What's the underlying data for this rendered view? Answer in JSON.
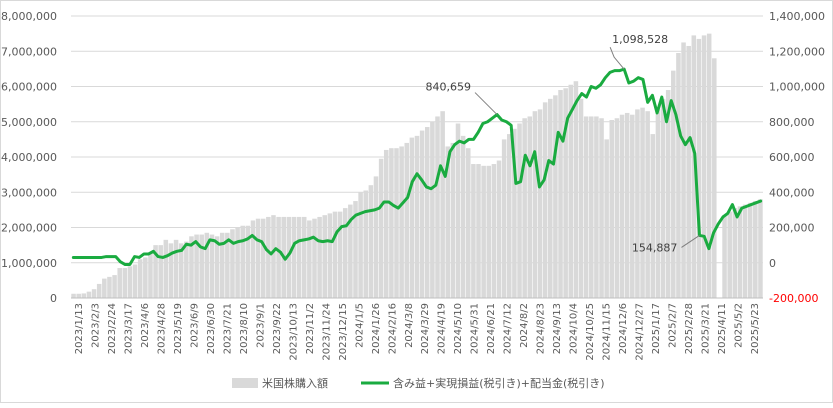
{
  "chart_data": {
    "type": "bar",
    "combo": "bar+line, dual y-axis",
    "x_tick_labels": [
      "2023/1/13",
      "2023/2/3",
      "2023/2/24",
      "2023/3/17",
      "2023/4/6",
      "2023/4/28",
      "2023/5/19",
      "2023/6/9",
      "2023/6/30",
      "2023/7/21",
      "2023/8/10",
      "2023/9/1",
      "2023/9/22",
      "2023/10/13",
      "2023/11/2",
      "2023/11/24",
      "2023/12/15",
      "2024/1/5",
      "2024/1/26",
      "2024/2/16",
      "2024/3/8",
      "2024/3/29",
      "2024/4/19",
      "2024/5/10",
      "2024/5/31",
      "2024/6/21",
      "2024/7/12",
      "2024/8/2",
      "2024/8/23",
      "2024/9/13",
      "2024/10/4",
      "2024/10/25",
      "2024/11/15",
      "2024/12/6",
      "2024/12/27",
      "2025/1/17",
      "2025/2/7",
      "2025/2/28",
      "2025/3/21",
      "2025/4/11",
      "2025/5/2",
      "2025/5/23"
    ],
    "y_left": {
      "ticks": [
        "0",
        "1,000,000",
        "2,000,000",
        "3,000,000",
        "4,000,000",
        "5,000,000",
        "6,000,000",
        "7,000,000",
        "8,000,000"
      ],
      "range": [
        0,
        8000000
      ]
    },
    "y_right": {
      "ticks": [
        "-200,000",
        "0",
        "200,000",
        "400,000",
        "600,000",
        "800,000",
        "1,000,000",
        "1,200,000",
        "1,400,000"
      ],
      "range": [
        -200000,
        1400000
      ],
      "negative_color": "#ff0000"
    },
    "grid": true,
    "legend_position": "bottom",
    "series": [
      {
        "name": "米国株購入額",
        "kind": "bar",
        "axis": "left",
        "color": "#d9d9d9",
        "values": [
          120000,
          120000,
          130000,
          180000,
          250000,
          400000,
          550000,
          600000,
          650000,
          850000,
          850000,
          900000,
          950000,
          1100000,
          1150000,
          1300000,
          1500000,
          1500000,
          1650000,
          1550000,
          1650000,
          1550000,
          1600000,
          1750000,
          1800000,
          1800000,
          1850000,
          1800000,
          1750000,
          1850000,
          1850000,
          1950000,
          2000000,
          2050000,
          2050000,
          2200000,
          2250000,
          2250000,
          2300000,
          2350000,
          2300000,
          2300000,
          2300000,
          2300000,
          2300000,
          2300000,
          2200000,
          2250000,
          2300000,
          2350000,
          2400000,
          2450000,
          2450000,
          2550000,
          2650000,
          2750000,
          3000000,
          3050000,
          3200000,
          3450000,
          3950000,
          4200000,
          4250000,
          4250000,
          4300000,
          4400000,
          4550000,
          4600000,
          4750000,
          4850000,
          5000000,
          5150000,
          5300000,
          4300000,
          4400000,
          4950000,
          4600000,
          4250000,
          3800000,
          3800000,
          3750000,
          3750000,
          3800000,
          3900000,
          4500000,
          4650000,
          4800000,
          4950000,
          5100000,
          5150000,
          5300000,
          5350000,
          5550000,
          5650000,
          5750000,
          5900000,
          5950000,
          6050000,
          6150000,
          5650000,
          5150000,
          5150000,
          5150000,
          5100000,
          4500000,
          5050000,
          5100000,
          5200000,
          5250000,
          5200000,
          5350000,
          5400000,
          5300000,
          4650000,
          5350000,
          5650000,
          5900000,
          6450000,
          6950000,
          7250000,
          7150000,
          7450000,
          7350000,
          7450000,
          7500000,
          6800000,
          0,
          2350000,
          2450000,
          2550000,
          2600000,
          2650000,
          2700000,
          2750000,
          2800000
        ]
      },
      {
        "name": "含み益+実現損益(税引き)+配当金(税引き)",
        "kind": "line",
        "axis": "right",
        "color": "#1aab40",
        "values": [
          30000,
          30000,
          30000,
          30000,
          30000,
          30000,
          30000,
          35000,
          35000,
          35000,
          5000,
          -10000,
          -10000,
          35000,
          30000,
          50000,
          50000,
          65000,
          35000,
          30000,
          40000,
          55000,
          65000,
          70000,
          105000,
          100000,
          120000,
          90000,
          80000,
          130000,
          125000,
          105000,
          110000,
          130000,
          110000,
          120000,
          125000,
          135000,
          155000,
          130000,
          120000,
          75000,
          50000,
          80000,
          60000,
          20000,
          55000,
          110000,
          125000,
          130000,
          135000,
          145000,
          125000,
          120000,
          125000,
          120000,
          175000,
          205000,
          210000,
          245000,
          270000,
          280000,
          290000,
          295000,
          300000,
          310000,
          345000,
          345000,
          325000,
          310000,
          340000,
          370000,
          460000,
          505000,
          470000,
          430000,
          420000,
          440000,
          550000,
          490000,
          630000,
          670000,
          690000,
          680000,
          700000,
          700000,
          740000,
          790000,
          800000,
          820000,
          840659,
          810000,
          800000,
          780000,
          450000,
          460000,
          610000,
          550000,
          630000,
          430000,
          470000,
          580000,
          560000,
          740000,
          690000,
          820000,
          870000,
          920000,
          960000,
          940000,
          1000000,
          990000,
          1010000,
          1050000,
          1080000,
          1090000,
          1090000,
          1098528,
          1020000,
          1030000,
          1050000,
          1040000,
          910000,
          950000,
          850000,
          940000,
          800000,
          920000,
          840000,
          720000,
          670000,
          710000,
          620000,
          154887,
          150000,
          80000,
          170000,
          220000,
          260000,
          280000,
          330000,
          260000,
          310000,
          320000,
          330000,
          340000,
          350000
        ]
      }
    ],
    "annotations": [
      {
        "label": "840,659",
        "series": 1,
        "point_index": 90
      },
      {
        "label": "1,098,528",
        "series": 1,
        "point_index": 117
      },
      {
        "label": "154,887",
        "series": 1,
        "point_index": 133
      }
    ]
  }
}
